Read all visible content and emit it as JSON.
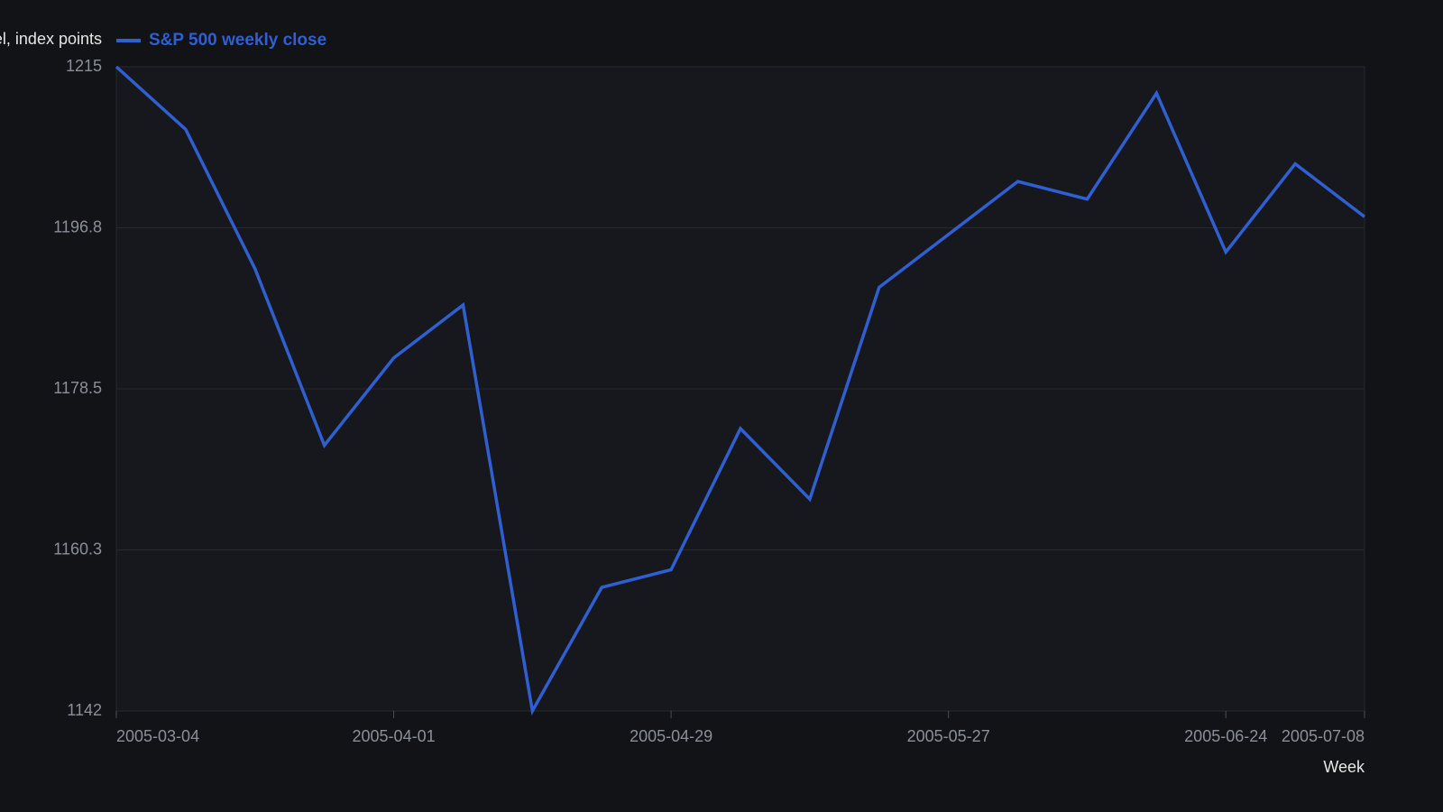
{
  "chart_data": {
    "type": "line",
    "y_label": "Level, index points",
    "x_label": "Week",
    "x": [
      "2005-03-04",
      "2005-03-11",
      "2005-03-18",
      "2005-03-25",
      "2005-04-01",
      "2005-04-08",
      "2005-04-15",
      "2005-04-22",
      "2005-04-29",
      "2005-05-06",
      "2005-05-13",
      "2005-05-20",
      "2005-05-27",
      "2005-06-03",
      "2005-06-10",
      "2005-06-17",
      "2005-06-24",
      "2005-07-01",
      "2005-07-08"
    ],
    "series": [
      {
        "name": "S&P 500 weekly close",
        "color": "#2f5fd0",
        "values": [
          1215,
          1207.9,
          1192.1,
          1172.1,
          1182.0,
          1188.0,
          1142,
          1156.0,
          1158.0,
          1174.0,
          1166.0,
          1190.0,
          1196.0,
          1202.0,
          1200.0,
          1212.0,
          1194.0,
          1204.0,
          1198.0
        ]
      }
    ],
    "xticks": [
      "2005-03-04",
      "2005-04-01",
      "2005-04-29",
      "2005-05-27",
      "2005-06-24",
      "2005-07-08"
    ],
    "ylim": [
      1142,
      1215
    ],
    "yticks": [
      1142,
      {
        "value": 1160.25,
        "label": "1160.3"
      },
      1178.5,
      {
        "value": 1196.75,
        "label": "1196.8"
      },
      1215
    ],
    "grid": true,
    "legend": "top-left"
  }
}
